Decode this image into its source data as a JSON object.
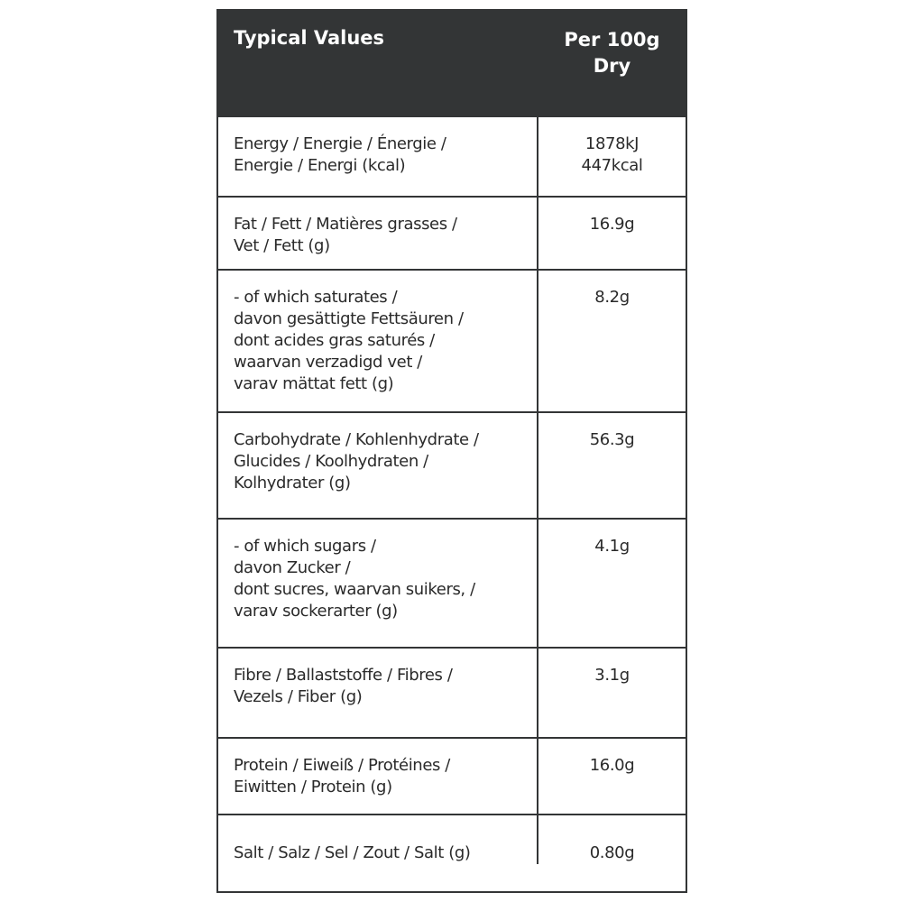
{
  "header": {
    "col1": "Typical Values",
    "col2": "Per 100g\nDry"
  },
  "rows": [
    {
      "label": "Energy / Energie / Énergie /\nEnergie / Energi (kcal)",
      "value": "1878kJ\n447kcal"
    },
    {
      "label": "Fat / Fett / Matières grasses /\nVet / Fett (g)",
      "value": "16.9g"
    },
    {
      "label": "- of which saturates /\ndavon gesättigte Fettsäuren /\ndont acides gras saturés /\nwaarvan verzadigd vet /\nvarav mättat fett (g)",
      "value": "8.2g"
    },
    {
      "label": "Carbohydrate / Kohlenhydrate /\nGlucides / Koolhydraten /\nKolhydrater (g)",
      "value": "56.3g"
    },
    {
      "label": "- of which sugars /\ndavon Zucker /\ndont sucres,  waarvan suikers, /\nvarav sockerarter (g)",
      "value": "4.1g"
    },
    {
      "label": "Fibre / Ballaststoffe / Fibres /\nVezels / Fiber (g)",
      "value": "3.1g"
    },
    {
      "label": "Protein / Eiweiß / Protéines /\nEiwitten / Protein (g)",
      "value": "16.0g"
    },
    {
      "label": "Salt / Salz / Sel / Zout / Salt (g)",
      "value": "0.80g"
    }
  ]
}
